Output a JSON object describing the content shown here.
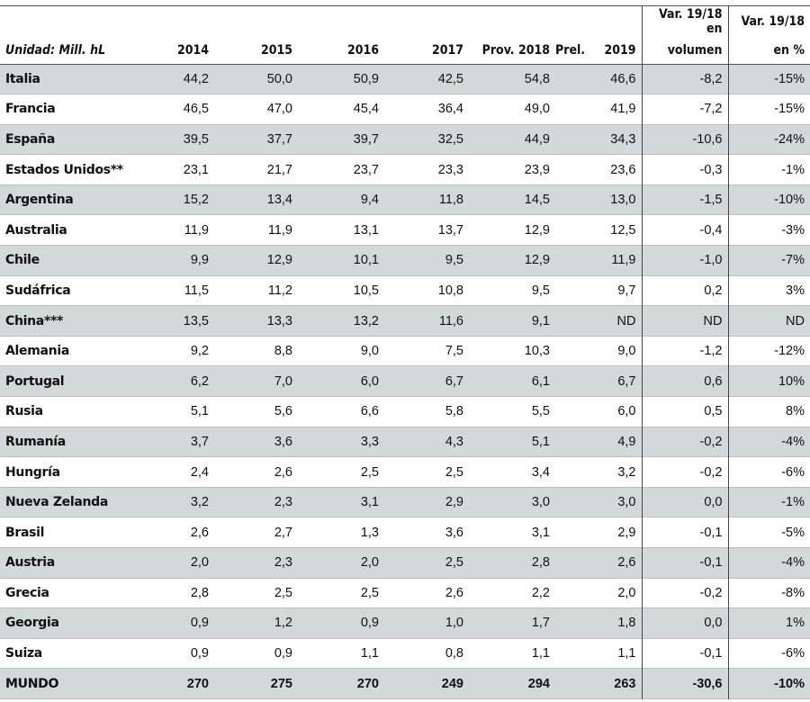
{
  "header": {
    "unit": "Unidad: Mill. hL",
    "years": [
      "2014",
      "2015",
      "2016",
      "2017",
      "Prov. 2018",
      "Prel.",
      "2019"
    ],
    "var_vol_top": "Var. 19/18 en",
    "var_vol_bottom": "volumen",
    "var_pct_top": "Var. 19/18",
    "var_pct_bottom": "en %"
  },
  "rows": [
    {
      "country": "Italia",
      "y2014": "44,2",
      "y2015": "50,0",
      "y2016": "50,9",
      "y2017": "42,5",
      "y2018": "54,8",
      "y2019": "46,6",
      "var_vol": "-8,2",
      "var_pct": "-15%"
    },
    {
      "country": "Francia",
      "y2014": "46,5",
      "y2015": "47,0",
      "y2016": "45,4",
      "y2017": "36,4",
      "y2018": "49,0",
      "y2019": "41,9",
      "var_vol": "-7,2",
      "var_pct": "-15%"
    },
    {
      "country": "España",
      "y2014": "39,5",
      "y2015": "37,7",
      "y2016": "39,7",
      "y2017": "32,5",
      "y2018": "44,9",
      "y2019": "34,3",
      "var_vol": "-10,6",
      "var_pct": "-24%"
    },
    {
      "country": "Estados Unidos**",
      "y2014": "23,1",
      "y2015": "21,7",
      "y2016": "23,7",
      "y2017": "23,3",
      "y2018": "23,9",
      "y2019": "23,6",
      "var_vol": "-0,3",
      "var_pct": "-1%"
    },
    {
      "country": "Argentina",
      "y2014": "15,2",
      "y2015": "13,4",
      "y2016": "9,4",
      "y2017": "11,8",
      "y2018": "14,5",
      "y2019": "13,0",
      "var_vol": "-1,5",
      "var_pct": "-10%"
    },
    {
      "country": "Australia",
      "y2014": "11,9",
      "y2015": "11,9",
      "y2016": "13,1",
      "y2017": "13,7",
      "y2018": "12,9",
      "y2019": "12,5",
      "var_vol": "-0,4",
      "var_pct": "-3%"
    },
    {
      "country": "Chile",
      "y2014": "9,9",
      "y2015": "12,9",
      "y2016": "10,1",
      "y2017": "9,5",
      "y2018": "12,9",
      "y2019": "11,9",
      "var_vol": "-1,0",
      "var_pct": "-7%"
    },
    {
      "country": "Sudáfrica",
      "y2014": "11,5",
      "y2015": "11,2",
      "y2016": "10,5",
      "y2017": "10,8",
      "y2018": "9,5",
      "y2019": "9,7",
      "var_vol": "0,2",
      "var_pct": "3%"
    },
    {
      "country": "China***",
      "y2014": "13,5",
      "y2015": "13,3",
      "y2016": "13,2",
      "y2017": "11,6",
      "y2018": "9,1",
      "y2019": "ND",
      "var_vol": "ND",
      "var_pct": "ND"
    },
    {
      "country": "Alemania",
      "y2014": "9,2",
      "y2015": "8,8",
      "y2016": "9,0",
      "y2017": "7,5",
      "y2018": "10,3",
      "y2019": "9,0",
      "var_vol": "-1,2",
      "var_pct": "-12%"
    },
    {
      "country": "Portugal",
      "y2014": "6,2",
      "y2015": "7,0",
      "y2016": "6,0",
      "y2017": "6,7",
      "y2018": "6,1",
      "y2019": "6,7",
      "var_vol": "0,6",
      "var_pct": "10%"
    },
    {
      "country": "Rusia",
      "y2014": "5,1",
      "y2015": "5,6",
      "y2016": "6,6",
      "y2017": "5,8",
      "y2018": "5,5",
      "y2019": "6,0",
      "var_vol": "0,5",
      "var_pct": "8%"
    },
    {
      "country": "Rumanía",
      "y2014": "3,7",
      "y2015": "3,6",
      "y2016": "3,3",
      "y2017": "4,3",
      "y2018": "5,1",
      "y2019": "4,9",
      "var_vol": "-0,2",
      "var_pct": "-4%"
    },
    {
      "country": "Hungría",
      "y2014": "2,4",
      "y2015": "2,6",
      "y2016": "2,5",
      "y2017": "2,5",
      "y2018": "3,4",
      "y2019": "3,2",
      "var_vol": "-0,2",
      "var_pct": "-6%"
    },
    {
      "country": "Nueva Zelanda",
      "y2014": "3,2",
      "y2015": "2,3",
      "y2016": "3,1",
      "y2017": "2,9",
      "y2018": "3,0",
      "y2019": "3,0",
      "var_vol": "0,0",
      "var_pct": "-1%"
    },
    {
      "country": "Brasil",
      "y2014": "2,6",
      "y2015": "2,7",
      "y2016": "1,3",
      "y2017": "3,6",
      "y2018": "3,1",
      "y2019": "2,9",
      "var_vol": "-0,1",
      "var_pct": "-5%"
    },
    {
      "country": "Austria",
      "y2014": "2,0",
      "y2015": "2,3",
      "y2016": "2,0",
      "y2017": "2,5",
      "y2018": "2,8",
      "y2019": "2,6",
      "var_vol": "-0,1",
      "var_pct": "-4%"
    },
    {
      "country": "Grecia",
      "y2014": "2,8",
      "y2015": "2,5",
      "y2016": "2,5",
      "y2017": "2,6",
      "y2018": "2,2",
      "y2019": "2,0",
      "var_vol": "-0,2",
      "var_pct": "-8%"
    },
    {
      "country": "Georgia",
      "y2014": "0,9",
      "y2015": "1,2",
      "y2016": "0,9",
      "y2017": "1,0",
      "y2018": "1,7",
      "y2019": "1,8",
      "var_vol": "0,0",
      "var_pct": "1%"
    },
    {
      "country": "Suiza",
      "y2014": "0,9",
      "y2015": "0,9",
      "y2016": "1,1",
      "y2017": "0,8",
      "y2018": "1,1",
      "y2019": "1,1",
      "var_vol": "-0,1",
      "var_pct": "-6%"
    }
  ],
  "total": {
    "country": "MUNDO",
    "y2014": "270",
    "y2015": "275",
    "y2016": "270",
    "y2017": "249",
    "y2018": "294",
    "y2019": "263",
    "var_vol": "-30,6",
    "var_pct": "-10%"
  }
}
